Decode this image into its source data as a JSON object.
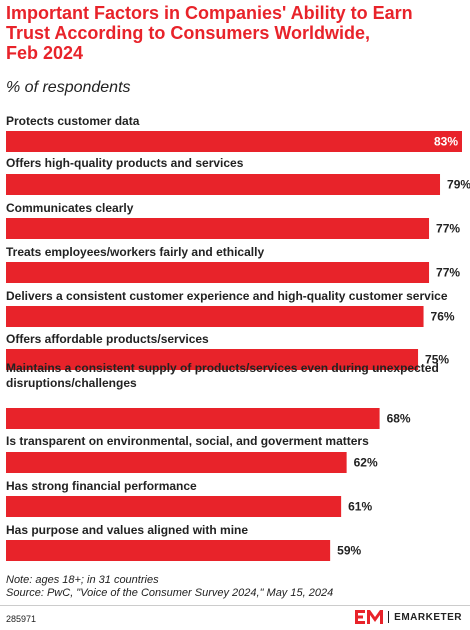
{
  "header": {
    "title": "Important Factors in Companies' Ability to Earn\nTrust According to Consumers Worldwide,\nFeb 2024",
    "subtitle": "% of respondents"
  },
  "colors": {
    "bar": "#e8232a",
    "title": "#e8232a",
    "value_inside": "#ffffff",
    "value_outside": "#222222"
  },
  "chart_data": {
    "type": "bar",
    "orientation": "horizontal",
    "categories": [
      [
        "Protects customer data"
      ],
      [
        "Offers high-quality products and services"
      ],
      [
        "Communicates clearly"
      ],
      [
        "Treats employees/workers fairly and ethically"
      ],
      [
        "Delivers a consistent customer experience and high-quality customer service"
      ],
      [
        "Offers affordable products/services"
      ],
      [
        "Maintains a consistent supply of products/services even during unexpected",
        "disruptions/challenges"
      ],
      [
        "Is transparent on environmental, social, and goverment matters"
      ],
      [
        "Has strong financial performance"
      ],
      [
        "Has purpose and values aligned with mine"
      ]
    ],
    "values": [
      83,
      79,
      77,
      77,
      76,
      75,
      68,
      62,
      61,
      59
    ],
    "value_labels": [
      "83%",
      "79%",
      "77%",
      "77%",
      "76%",
      "75%",
      "68%",
      "62%",
      "61%",
      "59%"
    ],
    "xlim": [
      0,
      83
    ]
  },
  "footer": {
    "note": "Note: ages 18+; in 31 countries",
    "source": "Source: PwC, \"Voice of the Consumer Survey 2024,\" May 15, 2024",
    "chart_id": "285971",
    "brand_name": "EMARKETER"
  }
}
